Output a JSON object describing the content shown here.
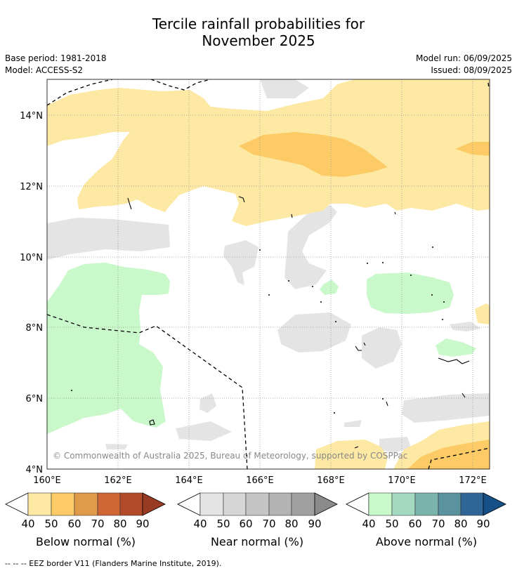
{
  "header": {
    "title_line1": "Tercile rainfall probabilities for",
    "title_line2": "November 2025",
    "base_period": "Base period: 1981-2018",
    "model": "Model: ACCESS-S2",
    "model_run": "Model run: 06/09/2025",
    "issued": "Issued: 08/09/2025"
  },
  "map": {
    "lat_labels": [
      "14°N",
      "12°N",
      "10°N",
      "8°N",
      "6°N",
      "4°N"
    ],
    "lon_labels": [
      "160°E",
      "162°E",
      "164°E",
      "166°E",
      "168°E",
      "170°E",
      "172°E"
    ],
    "extent": {
      "lon_min": 160,
      "lon_max": 172.5,
      "lat_min": 4,
      "lat_max": 15
    },
    "copyright": "© Commonwealth of Australia 2025, Bureau of Meteorology, supported by COSPPac"
  },
  "legend": {
    "below": {
      "label": "Below normal (%)",
      "ticks": [
        "40",
        "50",
        "60",
        "70",
        "80",
        "90"
      ],
      "colors": [
        "#fde9a3",
        "#fccb66",
        "#e09a4a",
        "#cf6634",
        "#b24a29",
        "#983b22"
      ]
    },
    "near": {
      "label": "Near normal (%)",
      "ticks": [
        "40",
        "50",
        "60",
        "70",
        "80",
        "90"
      ],
      "colors": [
        "#e4e4e4",
        "#d6d6d6",
        "#c5c5c5",
        "#b3b3b3",
        "#a0a0a0",
        "#8a8a8a"
      ]
    },
    "above": {
      "label": "Above normal (%)",
      "ticks": [
        "40",
        "50",
        "60",
        "70",
        "80",
        "90"
      ],
      "colors": [
        "#c9f8cb",
        "#a2d9c0",
        "#7bb3ad",
        "#5a929e",
        "#2f6697",
        "#174f87"
      ]
    }
  },
  "footnote": "--  --  -- EEZ border V11 (Flanders Marine Institute, 2019)."
}
